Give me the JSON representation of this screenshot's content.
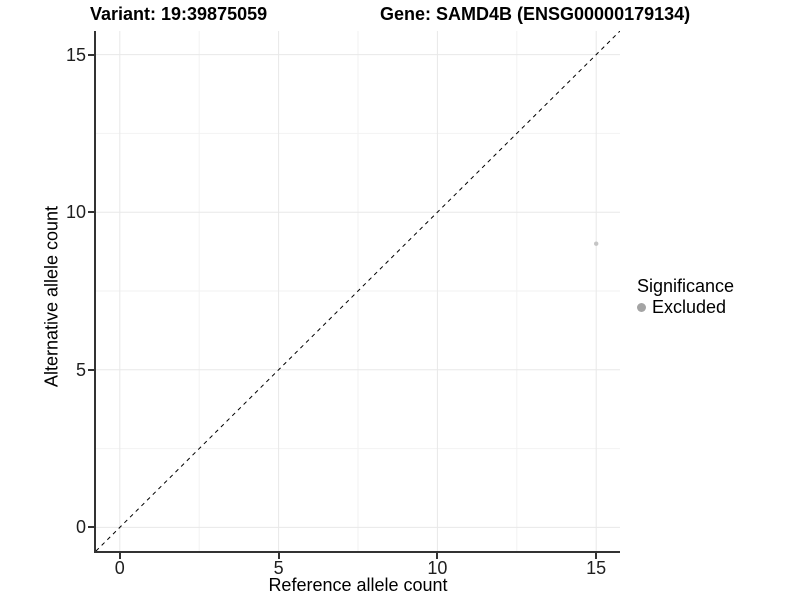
{
  "chart_data": {
    "type": "scatter",
    "title_left": "Variant: 19:39875059",
    "title_right": "Gene: SAMD4B (ENSG00000179134)",
    "xlabel": "Reference allele count",
    "ylabel": "Alternative allele count",
    "xlim": [
      -0.75,
      15.75
    ],
    "ylim": [
      -0.75,
      15.75
    ],
    "xticks": [
      0,
      5,
      10,
      15
    ],
    "yticks": [
      0,
      5,
      10,
      15
    ],
    "xtick_labels": [
      "0",
      "5",
      "10",
      "15"
    ],
    "ytick_labels": [
      "0",
      "5",
      "10",
      "15"
    ],
    "minor_gridlines": [
      2.5,
      7.5,
      12.5
    ],
    "grid": true,
    "points": [
      {
        "x": 15,
        "y": 9,
        "significance": "Excluded"
      }
    ],
    "reference_line": {
      "type": "diagonal-identity",
      "style": "dashed",
      "color": "#000000"
    },
    "legend": {
      "title": "Significance",
      "position": "right",
      "entries": [
        {
          "label": "Excluded",
          "color": "#a4a4a4"
        }
      ]
    },
    "style": {
      "point_color": "#c5c5c5",
      "legend_dot_color": "#a4a4a4",
      "grid_major_color": "#e8e8e8",
      "grid_minor_color": "#f2f2f2",
      "axis_color": "#333333",
      "dashed_line_color": "#000000"
    }
  }
}
